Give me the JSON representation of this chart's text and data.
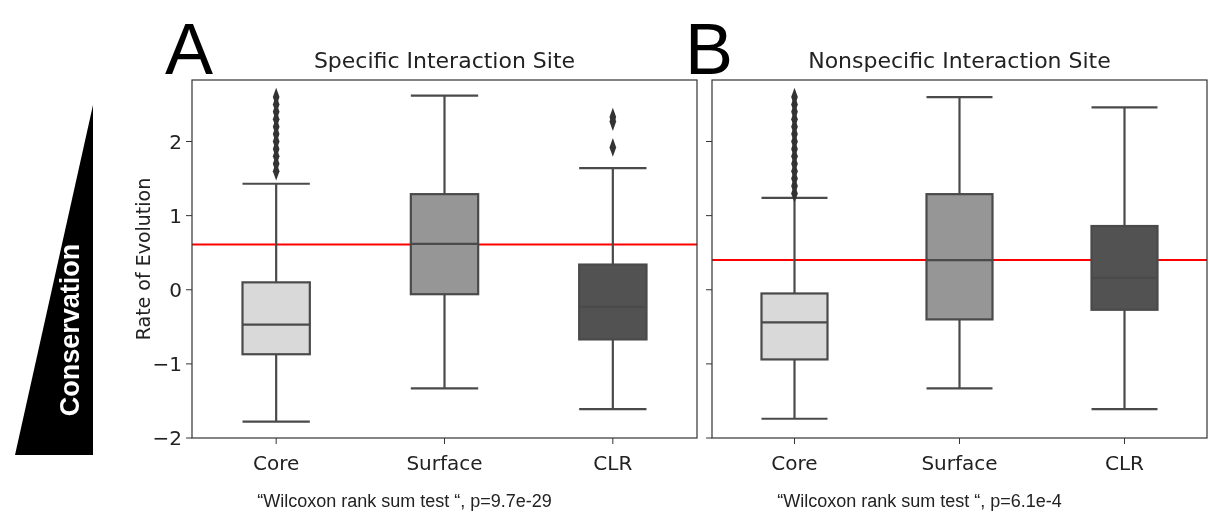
{
  "chart_data": [
    {
      "type": "box",
      "title": "Specific Interaction Site",
      "ylabel": "Rate of Evolution",
      "categories": [
        "Core",
        "Surface",
        "CLR"
      ],
      "colors": [
        "#d9d9d9",
        "#969696",
        "#525252"
      ],
      "boxes": [
        {
          "low": -1.78,
          "q1": -0.87,
          "median": -0.47,
          "q3": 0.1,
          "high": 1.43,
          "outliers": [
            1.6,
            1.7,
            1.8,
            1.9,
            2.0,
            2.1,
            2.2,
            2.3,
            2.4,
            2.5,
            2.6
          ]
        },
        {
          "low": -1.33,
          "q1": -0.06,
          "median": 0.62,
          "q3": 1.29,
          "high": 2.62
        },
        {
          "low": -1.61,
          "q1": -0.67,
          "median": -0.23,
          "q3": 0.34,
          "high": 1.64,
          "outliers": [
            1.92,
            2.27,
            2.33
          ]
        }
      ],
      "marker": "diamond",
      "ylim": [
        -2,
        2.83
      ],
      "yticks": [
        -2,
        -1,
        0,
        1,
        2
      ],
      "ref_lines": [
        {
          "axis": "y",
          "value": 0.61,
          "color": "#ff0000"
        }
      ],
      "annotations": [
        "A",
        "Conservation",
        "“Wilcoxon rank sum test “, p=9.7e-29"
      ]
    },
    {
      "type": "box",
      "title": "Nonspecific Interaction Site",
      "categories": [
        "Core",
        "Surface",
        "CLR"
      ],
      "colors": [
        "#d9d9d9",
        "#969696",
        "#525252"
      ],
      "boxes": [
        {
          "low": -1.74,
          "q1": -0.94,
          "median": -0.44,
          "q3": -0.05,
          "high": 1.24,
          "outliers": [
            1.3,
            1.4,
            1.5,
            1.6,
            1.7,
            1.8,
            1.9,
            2.0,
            2.1,
            2.2,
            2.3,
            2.4,
            2.5,
            2.6
          ]
        },
        {
          "low": -1.33,
          "q1": -0.4,
          "median": 0.4,
          "q3": 1.29,
          "high": 2.6
        },
        {
          "low": -1.61,
          "q1": -0.27,
          "median": 0.16,
          "q3": 0.86,
          "high": 2.46
        }
      ],
      "marker": "diamond",
      "ylim": [
        -2,
        2.83
      ],
      "yticks": [
        -2,
        -1,
        0,
        1,
        2
      ],
      "tick_labels": "x",
      "ref_lines": [
        {
          "axis": "y",
          "value": 0.4,
          "color": "#ff0000"
        }
      ],
      "annotations": [
        "B",
        "“Wilcoxon rank sum test “, p=6.1e-4"
      ]
    }
  ]
}
